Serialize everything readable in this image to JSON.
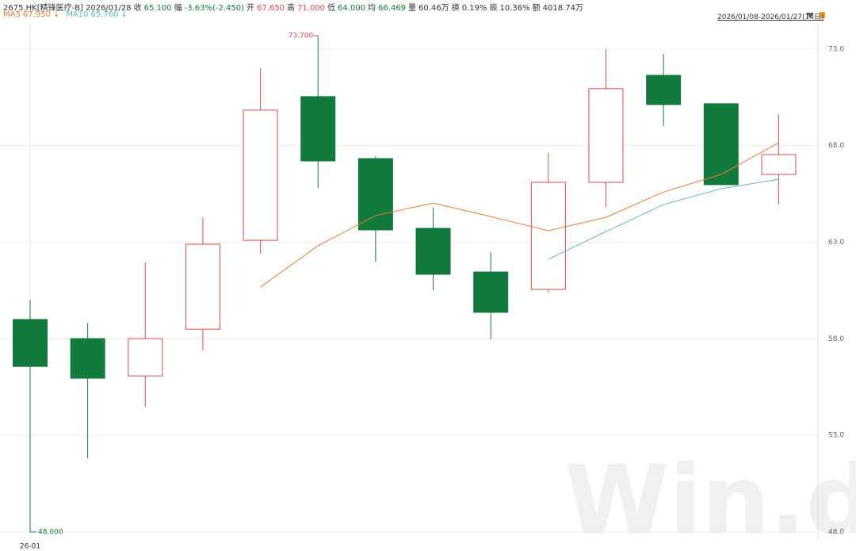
{
  "header": {
    "items": [
      {
        "text": "2675.HK[精锋医疗-B]",
        "color": "#333333"
      },
      {
        "text": "2026/01/28",
        "color": "#333333"
      },
      {
        "text": "收",
        "color": "#333333"
      },
      {
        "text": "65.100",
        "color": "#117a3c"
      },
      {
        "text": "幅",
        "color": "#333333"
      },
      {
        "text": "-3.63%(-2.450)",
        "color": "#117a3c"
      },
      {
        "text": "开",
        "color": "#333333"
      },
      {
        "text": "67.650",
        "color": "#e0474c"
      },
      {
        "text": "高",
        "color": "#333333"
      },
      {
        "text": "71.000",
        "color": "#e0474c"
      },
      {
        "text": "低",
        "color": "#333333"
      },
      {
        "text": "64.000",
        "color": "#117a3c"
      },
      {
        "text": "均",
        "color": "#333333"
      },
      {
        "text": "66.469",
        "color": "#117a3c"
      },
      {
        "text": "量",
        "color": "#333333"
      },
      {
        "text": "60.46万",
        "color": "#333333"
      },
      {
        "text": "换",
        "color": "#333333"
      },
      {
        "text": "0.19%",
        "color": "#333333"
      },
      {
        "text": "振",
        "color": "#333333"
      },
      {
        "text": "10.36%",
        "color": "#333333"
      },
      {
        "text": "额",
        "color": "#333333"
      },
      {
        "text": "4018.74万",
        "color": "#333333"
      }
    ],
    "date_range": "2026/01/08-2026/01/27(14日)"
  },
  "chart_data": {
    "type": "candlestick",
    "categories": [
      "26-01",
      null,
      null,
      null,
      null,
      null,
      null,
      null,
      null,
      null,
      null,
      null,
      null,
      null
    ],
    "ohlc": {
      "open": [
        59.0,
        58.01,
        56.08,
        58.5,
        63.1,
        70.54,
        67.33,
        63.72,
        61.46,
        60.56,
        66.1,
        71.64,
        70.17,
        66.51
      ],
      "high": [
        60.02,
        58.83,
        61.95,
        64.29,
        72.01,
        73.7,
        67.46,
        64.79,
        62.49,
        67.62,
        73.0,
        72.75,
        70.17,
        69.59
      ],
      "low": [
        48.0,
        51.81,
        54.48,
        57.39,
        62.4,
        65.81,
        62.0,
        60.52,
        57.97,
        60.39,
        64.83,
        69.02,
        65.98,
        64.95
      ],
      "close": [
        56.57,
        55.96,
        58.01,
        62.9,
        69.84,
        67.21,
        63.64,
        61.34,
        59.37,
        66.1,
        70.95,
        70.13,
        65.98,
        67.54
      ]
    },
    "up_color": "#e0474c",
    "down_color": "#117a3c",
    "lines": [
      {
        "name": "MA5",
        "legend_value": "67.950",
        "legend_arrow": "↓",
        "color": "#f07a32",
        "values": [
          null,
          null,
          null,
          null,
          60.68,
          62.82,
          64.38,
          65.03,
          64.33,
          63.6,
          64.29,
          65.6,
          66.51,
          68.15
        ]
      },
      {
        "name": "MA10",
        "legend_value": "65.760",
        "legend_arrow": "↓",
        "color": "#5ab8c4",
        "values": [
          null,
          null,
          null,
          null,
          null,
          null,
          null,
          null,
          null,
          62.12,
          63.55,
          64.95,
          65.77,
          66.26
        ]
      }
    ],
    "max_label": "73.700",
    "min_label": "48.000",
    "ylim": [
      47.63,
      74.31
    ],
    "yticks": [
      {
        "value": 48,
        "label": "48.0"
      },
      {
        "value": 53,
        "label": "53.0"
      },
      {
        "value": 58,
        "label": "58.0"
      },
      {
        "value": 63,
        "label": "63.0"
      },
      {
        "value": 68,
        "label": "68.0"
      },
      {
        "value": 73,
        "label": "73.0"
      }
    ],
    "grid": true,
    "watermark": "Win.d"
  }
}
